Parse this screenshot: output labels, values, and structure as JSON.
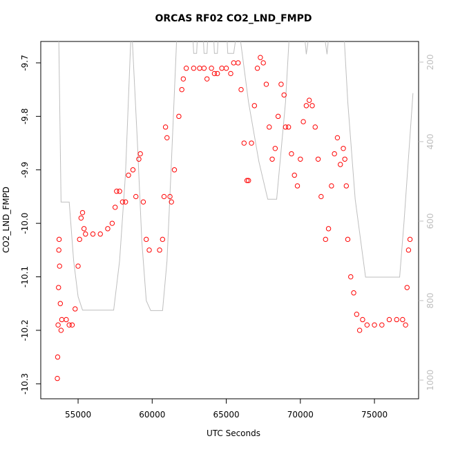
{
  "chart_data": {
    "type": "scatter",
    "title": "ORCAS RF02 CO2_LND_FMPD",
    "x_label": "UTC Seconds",
    "y_label": "CO2_LND_FMPD",
    "xlim": [
      52480,
      77980
    ],
    "xticks": [
      55000,
      60000,
      65000,
      70000,
      75000
    ],
    "ylim": [
      -10.328,
      -9.66
    ],
    "yticks": [
      -10.3,
      -10.2,
      -10.1,
      {
        "value": -10.0,
        "label": "-10.0"
      },
      -9.9,
      -9.8,
      -9.7
    ],
    "y2lim": [
      1047,
      148
    ],
    "y2ticks": [
      200,
      400,
      600,
      800,
      1000
    ],
    "series": [
      {
        "style": "line",
        "axis": "y2",
        "color": "#bebebe",
        "x": [
          53400,
          53700,
          53850,
          54400,
          54700,
          55000,
          55300,
          57400,
          57800,
          58200,
          58600,
          59000,
          59300,
          59600,
          59900,
          60700,
          61000,
          61300,
          61700,
          62700,
          62800,
          63000,
          63100,
          63400,
          63500,
          63700,
          63800,
          64100,
          64200,
          64400,
          64500,
          65000,
          65100,
          65500,
          65800,
          66500,
          67200,
          67800,
          68400,
          69000,
          69300,
          70200,
          70400,
          70700,
          71500,
          71800,
          72000,
          72900,
          73200,
          73700,
          74400,
          76700,
          77000,
          77600
        ],
        "values": [
          100,
          150,
          552,
          552,
          700,
          790,
          824,
          824,
          700,
          480,
          100,
          400,
          650,
          800,
          825,
          825,
          700,
          450,
          100,
          100,
          178,
          178,
          100,
          100,
          178,
          178,
          100,
          100,
          178,
          178,
          100,
          100,
          178,
          178,
          100,
          300,
          450,
          545,
          545,
          300,
          100,
          100,
          180,
          100,
          100,
          180,
          100,
          100,
          300,
          545,
          741,
          741,
          600,
          278
        ]
      },
      {
        "style": "points",
        "color": "#ff0000",
        "x": [
          53600,
          53620,
          53650,
          53680,
          53700,
          53720,
          53750,
          53800,
          53850,
          53900,
          54200,
          54400,
          54600,
          54800,
          55000,
          55100,
          55200,
          55300,
          55400,
          55500,
          56000,
          56500,
          57000,
          57300,
          57500,
          57600,
          57800,
          58000,
          58200,
          58400,
          58700,
          58900,
          59100,
          59200,
          59400,
          59600,
          59800,
          60500,
          60700,
          60800,
          60900,
          61000,
          61200,
          61300,
          61500,
          61800,
          62000,
          62100,
          62300,
          62800,
          63200,
          63500,
          63700,
          64000,
          64200,
          64400,
          64700,
          65000,
          65300,
          65500,
          65800,
          66000,
          66200,
          66400,
          66500,
          66700,
          66900,
          67100,
          67300,
          67500,
          67700,
          67900,
          68100,
          68300,
          68500,
          68700,
          68900,
          69000,
          69200,
          69400,
          69600,
          69800,
          70000,
          70200,
          70400,
          70600,
          70800,
          71000,
          71200,
          71400,
          71700,
          71900,
          72100,
          72300,
          72500,
          72700,
          72900,
          73000,
          73100,
          73200,
          73400,
          73600,
          73800,
          74000,
          74200,
          74500,
          75000,
          75500,
          76000,
          76500,
          76900,
          77100,
          77200,
          77300,
          77400
        ],
        "values": [
          -10.29,
          -10.25,
          -10.19,
          -10.12,
          -10.05,
          -10.03,
          -10.08,
          -10.15,
          -10.2,
          -10.18,
          -10.18,
          -10.19,
          -10.19,
          -10.16,
          -10.08,
          -10.03,
          -9.99,
          -9.98,
          -10.01,
          -10.02,
          -10.02,
          -10.02,
          -10.01,
          -10.0,
          -9.97,
          -9.94,
          -9.94,
          -9.96,
          -9.96,
          -9.91,
          -9.9,
          -9.95,
          -9.88,
          -9.87,
          -9.96,
          -10.03,
          -10.05,
          -10.05,
          -10.03,
          -9.95,
          -9.82,
          -9.84,
          -9.95,
          -9.96,
          -9.9,
          -9.8,
          -9.75,
          -9.73,
          -9.71,
          -9.71,
          -9.71,
          -9.71,
          -9.73,
          -9.71,
          -9.72,
          -9.72,
          -9.71,
          -9.71,
          -9.72,
          -9.7,
          -9.7,
          -9.75,
          -9.85,
          -9.92,
          -9.92,
          -9.85,
          -9.78,
          -9.71,
          -9.69,
          -9.7,
          -9.74,
          -9.82,
          -9.88,
          -9.86,
          -9.8,
          -9.74,
          -9.76,
          -9.82,
          -9.82,
          -9.87,
          -9.91,
          -9.93,
          -9.88,
          -9.81,
          -9.78,
          -9.77,
          -9.78,
          -9.82,
          -9.88,
          -9.95,
          -10.03,
          -10.01,
          -9.93,
          -9.87,
          -9.84,
          -9.89,
          -9.86,
          -9.88,
          -9.93,
          -10.03,
          -10.1,
          -10.13,
          -10.17,
          -10.2,
          -10.18,
          -10.19,
          -10.19,
          -10.19,
          -10.18,
          -10.18,
          -10.18,
          -10.19,
          -10.12,
          -10.05,
          -10.03
        ]
      }
    ]
  }
}
